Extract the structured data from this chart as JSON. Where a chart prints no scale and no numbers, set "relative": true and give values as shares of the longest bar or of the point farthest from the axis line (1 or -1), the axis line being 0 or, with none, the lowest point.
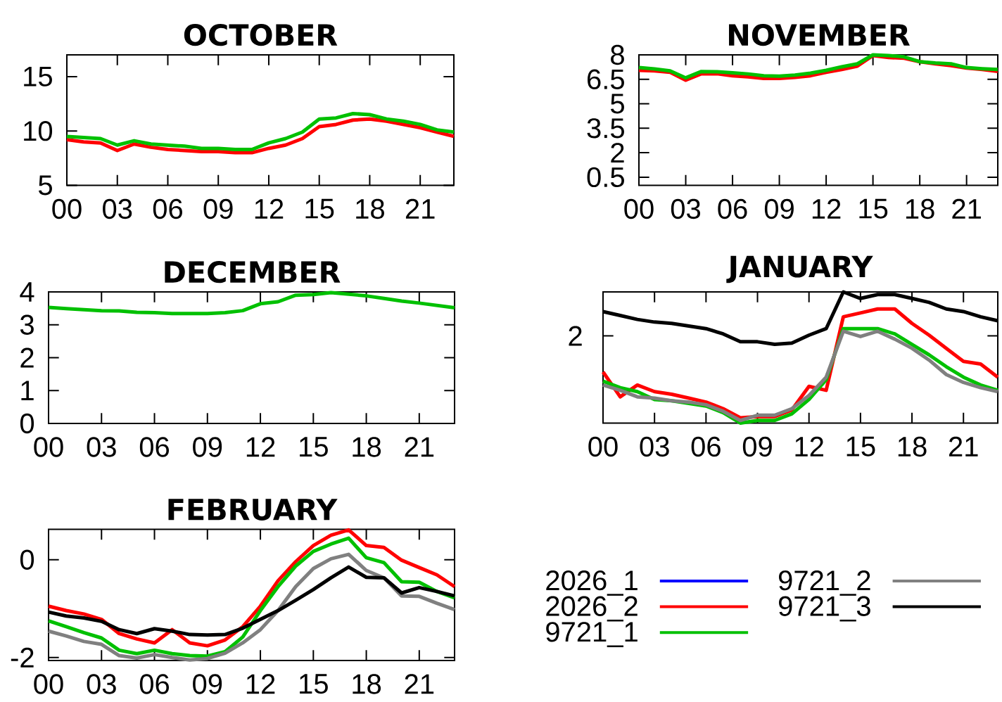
{
  "chart_data": [
    {
      "type": "line",
      "title": "OCTOBER",
      "x": [
        0,
        1,
        2,
        3,
        4,
        5,
        6,
        7,
        8,
        9,
        10,
        11,
        12,
        13,
        14,
        15,
        16,
        17,
        18,
        19,
        20,
        21,
        22,
        23
      ],
      "xlim": [
        0,
        23
      ],
      "xticks": [
        {
          "value": 0,
          "label": "00"
        },
        {
          "value": 3,
          "label": "03"
        },
        {
          "value": 6,
          "label": "06"
        },
        {
          "value": 9,
          "label": "09"
        },
        12,
        15,
        18,
        21
      ],
      "ylim": [
        5,
        17
      ],
      "yticks": [
        5,
        10,
        15
      ],
      "series": [
        {
          "color": "#ff0000",
          "values": [
            9.2,
            9.0,
            8.9,
            8.2,
            8.8,
            8.5,
            8.3,
            8.2,
            8.1,
            8.1,
            8.0,
            8.0,
            8.4,
            8.7,
            9.3,
            10.4,
            10.6,
            11.0,
            11.1,
            10.9,
            10.6,
            10.3,
            9.9,
            9.5
          ]
        },
        {
          "color": "#00c000",
          "values": [
            9.5,
            9.4,
            9.3,
            8.7,
            9.1,
            8.8,
            8.7,
            8.6,
            8.4,
            8.4,
            8.3,
            8.3,
            8.9,
            9.3,
            9.9,
            11.1,
            11.2,
            11.6,
            11.5,
            11.1,
            10.9,
            10.6,
            10.1,
            9.9
          ]
        }
      ]
    },
    {
      "type": "line",
      "title": "NOVEMBER",
      "x": [
        0,
        1,
        2,
        3,
        4,
        5,
        6,
        7,
        8,
        9,
        10,
        11,
        12,
        13,
        14,
        15,
        16,
        17,
        18,
        19,
        20,
        21,
        22,
        23
      ],
      "xlim": [
        0,
        23
      ],
      "xticks": [
        {
          "value": 0,
          "label": "00"
        },
        {
          "value": 3,
          "label": "03"
        },
        {
          "value": 6,
          "label": "06"
        },
        {
          "value": 9,
          "label": "09"
        },
        12,
        15,
        18,
        21
      ],
      "ylim": [
        0,
        8
      ],
      "yticks": [
        0.5,
        2,
        3.5,
        5,
        6.5,
        8
      ],
      "series": [
        {
          "color": "#ff0000",
          "values": [
            7.05,
            7.02,
            6.93,
            6.45,
            6.84,
            6.84,
            6.72,
            6.65,
            6.55,
            6.55,
            6.62,
            6.72,
            6.93,
            7.1,
            7.31,
            7.96,
            7.84,
            7.79,
            7.58,
            7.45,
            7.34,
            7.19,
            7.1,
            6.98
          ]
        },
        {
          "color": "#00c000",
          "values": [
            7.22,
            7.14,
            7.02,
            6.59,
            6.98,
            6.96,
            6.9,
            6.83,
            6.72,
            6.69,
            6.76,
            6.88,
            7.05,
            7.27,
            7.45,
            8.0,
            7.96,
            7.88,
            7.58,
            7.5,
            7.45,
            7.22,
            7.15,
            7.1
          ]
        }
      ]
    },
    {
      "type": "line",
      "title": "DECEMBER",
      "x": [
        0,
        1,
        2,
        3,
        4,
        5,
        6,
        7,
        8,
        9,
        10,
        11,
        12,
        13,
        14,
        15,
        16,
        17,
        18,
        19,
        20,
        21,
        22,
        23
      ],
      "xlim": [
        0,
        23
      ],
      "xticks": [
        {
          "value": 0,
          "label": "00"
        },
        {
          "value": 3,
          "label": "03"
        },
        {
          "value": 6,
          "label": "06"
        },
        {
          "value": 9,
          "label": "09"
        },
        12,
        15,
        18,
        21
      ],
      "ylim": [
        0,
        4
      ],
      "yticks": [
        0,
        1,
        2,
        3,
        4
      ],
      "series": [
        {
          "color": "#00c000",
          "values": [
            3.53,
            3.49,
            3.46,
            3.43,
            3.42,
            3.38,
            3.37,
            3.34,
            3.34,
            3.34,
            3.37,
            3.43,
            3.64,
            3.7,
            3.9,
            3.92,
            3.98,
            3.93,
            3.88,
            3.8,
            3.72,
            3.66,
            3.59,
            3.52
          ]
        }
      ]
    },
    {
      "type": "line",
      "title": "JANUARY",
      "relative": true,
      "annotations": [
        "2"
      ],
      "x": [
        0,
        1,
        2,
        3,
        4,
        5,
        6,
        7,
        8,
        9,
        10,
        11,
        12,
        13,
        14,
        15,
        16,
        17,
        18,
        19,
        20,
        21,
        22,
        23
      ],
      "xlim": [
        0,
        23
      ],
      "xticks": [
        {
          "value": 0,
          "label": "00"
        },
        {
          "value": 3,
          "label": "03"
        },
        {
          "value": 6,
          "label": "06"
        },
        {
          "value": 9,
          "label": "09"
        },
        12,
        15,
        18,
        21
      ],
      "series": [
        {
          "color": "#ff0000",
          "values": [
            0.39,
            0.2,
            0.29,
            0.24,
            0.22,
            0.19,
            0.16,
            0.11,
            0.04,
            0.05,
            0.05,
            0.1,
            0.28,
            0.25,
            0.81,
            0.84,
            0.87,
            0.87,
            0.76,
            0.67,
            0.57,
            0.47,
            0.45,
            0.35
          ]
        },
        {
          "color": "#00c000",
          "values": [
            0.32,
            0.27,
            0.24,
            0.18,
            0.17,
            0.15,
            0.13,
            0.08,
            0.0,
            0.02,
            0.02,
            0.07,
            0.18,
            0.33,
            0.72,
            0.72,
            0.72,
            0.68,
            0.6,
            0.52,
            0.43,
            0.35,
            0.29,
            0.25
          ]
        },
        {
          "color": "#808080",
          "values": [
            0.29,
            0.25,
            0.2,
            0.19,
            0.17,
            0.16,
            0.14,
            0.09,
            0.02,
            0.06,
            0.06,
            0.11,
            0.21,
            0.35,
            0.7,
            0.66,
            0.7,
            0.64,
            0.57,
            0.48,
            0.37,
            0.31,
            0.27,
            0.24
          ]
        },
        {
          "color": "#000000",
          "values": [
            0.85,
            0.82,
            0.79,
            0.77,
            0.76,
            0.74,
            0.72,
            0.68,
            0.62,
            0.62,
            0.6,
            0.61,
            0.67,
            0.72,
            1.0,
            0.95,
            0.98,
            0.98,
            0.95,
            0.92,
            0.87,
            0.85,
            0.81,
            0.78
          ]
        }
      ]
    },
    {
      "type": "line",
      "title": "FEBRUARY",
      "legend": "right",
      "x": [
        0,
        1,
        2,
        3,
        4,
        5,
        6,
        7,
        8,
        9,
        10,
        11,
        12,
        13,
        14,
        15,
        16,
        17,
        18,
        19,
        20,
        21,
        22,
        23
      ],
      "xlim": [
        0,
        23
      ],
      "xticks": [
        {
          "value": 0,
          "label": "00"
        },
        {
          "value": 3,
          "label": "03"
        },
        {
          "value": 6,
          "label": "06"
        },
        {
          "value": 9,
          "label": "09"
        },
        12,
        15,
        18,
        21
      ],
      "ylim": [
        -2.06,
        0.62
      ],
      "yticks": [
        -2,
        0
      ],
      "series": [
        {
          "name": "2026_1",
          "color": "#0000ff",
          "values": [
            null,
            null,
            null,
            null,
            null,
            null,
            null,
            null,
            null,
            null,
            null,
            null,
            null,
            null,
            null,
            null,
            null,
            null,
            null,
            null,
            null,
            null,
            null,
            null
          ]
        },
        {
          "name": "2026_2",
          "color": "#ff0000",
          "values": [
            -0.95,
            -1.04,
            -1.11,
            -1.22,
            -1.51,
            -1.62,
            -1.7,
            -1.43,
            -1.7,
            -1.76,
            -1.64,
            -1.37,
            -0.95,
            -0.43,
            -0.04,
            0.29,
            0.5,
            0.61,
            0.29,
            0.25,
            -0.01,
            -0.16,
            -0.31,
            -0.55
          ]
        },
        {
          "name": "9721_1",
          "color": "#00c000",
          "values": [
            -1.25,
            -1.37,
            -1.49,
            -1.6,
            -1.85,
            -1.92,
            -1.85,
            -1.92,
            -1.96,
            -1.97,
            -1.88,
            -1.58,
            -1.04,
            -0.55,
            -0.13,
            0.17,
            0.32,
            0.44,
            0.04,
            -0.06,
            -0.45,
            -0.46,
            -0.65,
            -0.78
          ]
        },
        {
          "name": "9721_2",
          "color": "#808080",
          "values": [
            -1.46,
            -1.56,
            -1.67,
            -1.73,
            -1.96,
            -2.01,
            -1.94,
            -2.0,
            -2.05,
            -2.02,
            -1.91,
            -1.7,
            -1.43,
            -1.04,
            -0.55,
            -0.18,
            0.02,
            0.11,
            -0.22,
            -0.37,
            -0.74,
            -0.75,
            -0.89,
            -1.02
          ]
        },
        {
          "name": "9721_3",
          "color": "#000000",
          "values": [
            -1.07,
            -1.15,
            -1.19,
            -1.26,
            -1.43,
            -1.51,
            -1.41,
            -1.46,
            -1.53,
            -1.54,
            -1.53,
            -1.4,
            -1.22,
            -1.04,
            -0.83,
            -0.61,
            -0.37,
            -0.15,
            -0.36,
            -0.37,
            -0.68,
            -0.57,
            -0.65,
            -0.74
          ]
        }
      ]
    }
  ]
}
